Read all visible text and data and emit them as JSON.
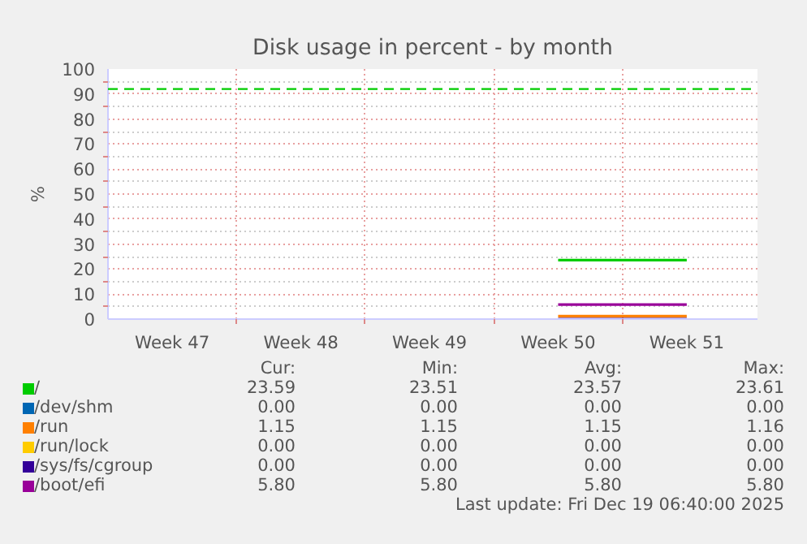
{
  "chart_data": {
    "type": "line",
    "title": "Disk usage in percent - by month",
    "ylabel": "%",
    "categories": [
      "Week 47",
      "Week 48",
      "Week 49",
      "Week 50",
      "Week 51"
    ],
    "ylim": [
      0,
      100
    ],
    "yticks": [
      0,
      10,
      20,
      30,
      40,
      50,
      60,
      70,
      80,
      90,
      100
    ],
    "grid": true,
    "legend": "bottom",
    "marker": "none",
    "line_style": "solid",
    "series": [
      {
        "name": "/",
        "color": "#00cc00",
        "values": [
          null,
          null,
          null,
          23.59,
          23.59
        ]
      },
      {
        "name": "/dev/shm",
        "color": "#0066b3",
        "values": [
          null,
          null,
          null,
          null,
          null
        ]
      },
      {
        "name": "/run",
        "color": "#ff8000",
        "values": [
          null,
          null,
          null,
          1.15,
          1.15
        ]
      },
      {
        "name": "/run/lock",
        "color": "#ffcc00",
        "values": [
          null,
          null,
          null,
          null,
          null
        ]
      },
      {
        "name": "/sys/fs/cgroup",
        "color": "#330099",
        "values": [
          null,
          null,
          null,
          0,
          0
        ]
      },
      {
        "name": "/boot/efi",
        "color": "#990099",
        "values": [
          null,
          null,
          null,
          5.8,
          5.8
        ]
      }
    ],
    "ref_lines": [
      {
        "axis": "y",
        "value": 92,
        "color": "#00cc00",
        "line_style": "dashed"
      }
    ],
    "annotations": [
      "Cur:",
      "Min:",
      "Avg:",
      "Max:",
      "23.59",
      "23.51",
      "23.57",
      "23.61",
      "0.00",
      "0.00",
      "0.00",
      "0.00",
      "1.15",
      "1.15",
      "1.15",
      "1.16",
      "0.00",
      "0.00",
      "0.00",
      "0.00",
      "0.00",
      "0.00",
      "0.00",
      "0.00",
      "5.80",
      "5.80",
      "5.80",
      "5.80",
      "Last update: Fri Dec 19 06:40:00 2025"
    ]
  }
}
